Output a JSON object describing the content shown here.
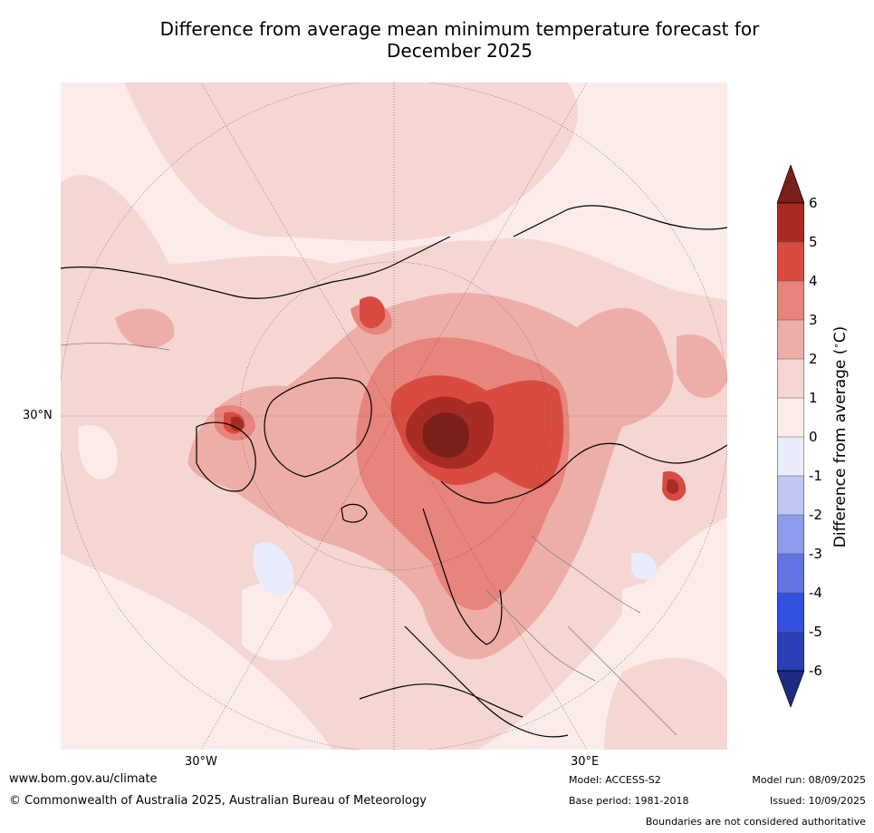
{
  "title_line1": "Difference from average mean minimum temperature forecast for",
  "title_line2": "December 2025",
  "map": {
    "projection": "north-polar-stereographic",
    "lat_label_30N": "30°N",
    "lon_label_30W": "30°W",
    "lon_label_30E": "30°E"
  },
  "colorbar": {
    "label": "Difference from average (",
    "unit": "C)",
    "ticks": [
      "6",
      "5",
      "4",
      "3",
      "2",
      "1",
      "0",
      "-1",
      "-2",
      "-3",
      "-4",
      "-5",
      "-6"
    ],
    "colors": {
      "above6": "#7a1f1a",
      "5to6": "#a82b24",
      "4to5": "#d94b40",
      "3to4": "#e7847c",
      "2to3": "#eeaea8",
      "1to2": "#f5d6d3",
      "0to1": "#fbecea",
      "m1to0": "#e9ecfb",
      "m2tom1": "#bfc7f2",
      "m3tom2": "#8f9ceb",
      "m4tom3": "#6174e3",
      "m5tom4": "#3450e0",
      "m6tom5": "#2a3fb4",
      "below_m6": "#1e2c80"
    }
  },
  "footer": {
    "website": "www.bom.gov.au/climate",
    "copyright": "© Commonwealth of Australia 2025, Australian Bureau of Meteorology",
    "model": "Model: ACCESS-S2",
    "base_period": "Base period: 1981-2018",
    "model_run": "Model run: 08/09/2025",
    "issued": "Issued: 10/09/2025",
    "boundaries_note": "Boundaries are not considered authoritative"
  }
}
